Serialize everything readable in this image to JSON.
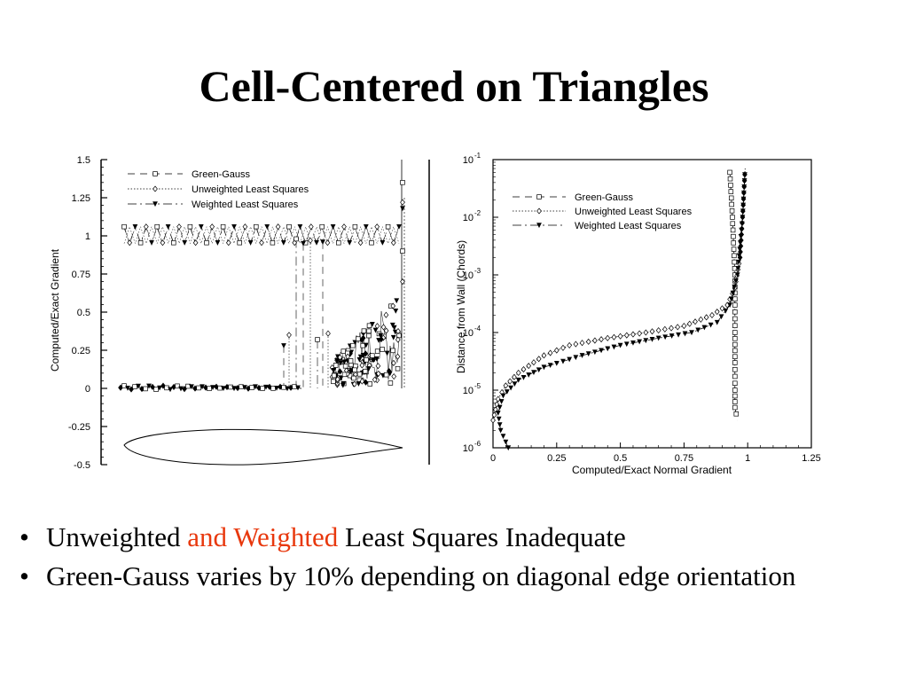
{
  "slide": {
    "title": "Cell-Centered on Triangles",
    "bullets": [
      {
        "parts": [
          "Unweighted ",
          "and Weighted",
          " Least Squares Inadequate"
        ]
      },
      {
        "text": "Green-Gauss varies by 10% depending on diagonal edge orientation"
      }
    ],
    "colors": {
      "highlight": "#e8380d",
      "text": "#000000"
    }
  },
  "chart_data": [
    {
      "type": "line",
      "ylabel": "Computed/Exact Gradient",
      "xlabel": "",
      "ylim": [
        -0.5,
        1.5
      ],
      "yticks": [
        "1.5",
        "1.25",
        "1",
        "0.75",
        "0.5",
        "0.25",
        "0",
        "-0.25",
        "-0.5"
      ],
      "legend_position": "top-left",
      "series": [
        {
          "name": "Green-Gauss",
          "marker": "square"
        },
        {
          "name": "Unweighted Least Squares",
          "marker": "diamond"
        },
        {
          "name": "Weighted Least Squares",
          "marker": "triangle-down"
        }
      ]
    },
    {
      "type": "line",
      "xlabel": "Computed/Exact Normal Gradient",
      "ylabel": "Distance from Wall (Chords)",
      "xlim": [
        0,
        1.25
      ],
      "ylim": [
        1e-06,
        0.1
      ],
      "yscale": "log",
      "xticks": [
        "0",
        "0.25",
        "0.5",
        "0.75",
        "1",
        "1.25"
      ],
      "yticks": [
        {
          "base": "10",
          "exp": "-1"
        },
        {
          "base": "10",
          "exp": "-2"
        },
        {
          "base": "10",
          "exp": "-3"
        },
        {
          "base": "10",
          "exp": "-4"
        },
        {
          "base": "10",
          "exp": "-5"
        },
        {
          "base": "10",
          "exp": "-6"
        }
      ],
      "legend_position": "top-left",
      "series": [
        {
          "name": "Green-Gauss",
          "marker": "square",
          "x": [
            0.93,
            0.94,
            0.95,
            0.95,
            0.95,
            0.95,
            0.95,
            0.95,
            0.96
          ],
          "y": [
            0.06,
            0.01,
            0.001,
            0.0003,
            0.0001,
            3e-05,
            1e-05,
            5e-06,
            3e-06
          ]
        },
        {
          "name": "Unweighted Least Squares",
          "marker": "diamond",
          "x": [
            0.0,
            0.02,
            0.05,
            0.1,
            0.2,
            0.3,
            0.45,
            0.6,
            0.75,
            0.86,
            0.92,
            0.95,
            0.97,
            0.98,
            0.99
          ],
          "y": [
            3e-06,
            7e-06,
            1.2e-05,
            2e-05,
            4e-05,
            6e-05,
            8e-05,
            0.0001,
            0.00013,
            0.0002,
            0.0003,
            0.0006,
            0.002,
            0.01,
            0.07
          ]
        },
        {
          "name": "Weighted Least Squares",
          "marker": "triangle-down",
          "x": [
            0.06,
            0.03,
            0.02,
            0.04,
            0.1,
            0.2,
            0.35,
            0.5,
            0.65,
            0.78,
            0.88,
            0.93,
            0.96,
            0.98,
            0.99
          ],
          "y": [
            1e-06,
            2e-06,
            4e-06,
            8e-06,
            1.5e-05,
            2.5e-05,
            4e-05,
            6e-05,
            8e-05,
            0.0001,
            0.00015,
            0.0003,
            0.001,
            0.01,
            0.07
          ]
        }
      ]
    }
  ]
}
